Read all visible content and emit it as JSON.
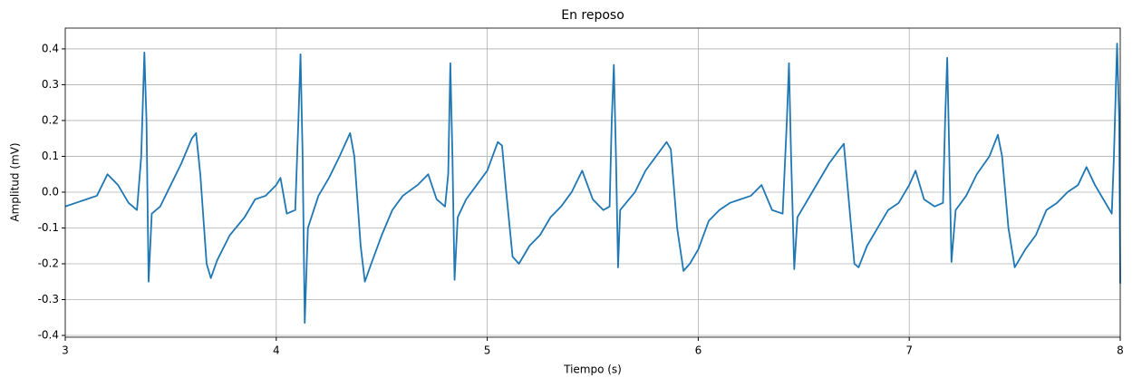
{
  "chart_data": {
    "type": "line",
    "title": "En reposo",
    "xlabel": "Tiempo (s)",
    "ylabel": "Amplitud (mV)",
    "x": [
      3.0,
      3.05,
      3.1,
      3.15,
      3.2,
      3.25,
      3.3,
      3.34,
      3.36,
      3.375,
      3.385,
      3.395,
      3.41,
      3.45,
      3.5,
      3.55,
      3.6,
      3.62,
      3.64,
      3.67,
      3.69,
      3.72,
      3.78,
      3.85,
      3.9,
      3.95,
      4.0,
      4.02,
      4.05,
      4.09,
      4.105,
      4.115,
      4.125,
      4.135,
      4.15,
      4.2,
      4.25,
      4.3,
      4.35,
      4.37,
      4.4,
      4.42,
      4.45,
      4.5,
      4.55,
      4.6,
      4.67,
      4.72,
      4.76,
      4.8,
      4.815,
      4.825,
      4.835,
      4.845,
      4.86,
      4.9,
      4.95,
      5.0,
      5.05,
      5.07,
      5.09,
      5.12,
      5.15,
      5.2,
      5.25,
      5.3,
      5.35,
      5.4,
      5.45,
      5.5,
      5.55,
      5.58,
      5.59,
      5.6,
      5.61,
      5.62,
      5.63,
      5.7,
      5.75,
      5.8,
      5.85,
      5.87,
      5.9,
      5.93,
      5.96,
      6.0,
      6.05,
      6.1,
      6.15,
      6.2,
      6.25,
      6.3,
      6.35,
      6.4,
      6.42,
      6.43,
      6.44,
      6.455,
      6.47,
      6.52,
      6.57,
      6.62,
      6.67,
      6.69,
      6.71,
      6.74,
      6.76,
      6.8,
      6.85,
      6.9,
      6.95,
      7.0,
      7.03,
      7.07,
      7.12,
      7.16,
      7.17,
      7.18,
      7.19,
      7.2,
      7.22,
      7.27,
      7.32,
      7.38,
      7.42,
      7.44,
      7.47,
      7.5,
      7.55,
      7.6,
      7.65,
      7.7,
      7.75,
      7.8,
      7.84,
      7.88,
      7.92,
      7.96,
      7.97,
      7.985,
      7.995,
      8.0
    ],
    "values": [
      -0.04,
      -0.03,
      -0.02,
      -0.01,
      0.05,
      0.02,
      -0.03,
      -0.05,
      0.1,
      0.39,
      0.2,
      -0.25,
      -0.06,
      -0.04,
      0.02,
      0.08,
      0.15,
      0.165,
      0.05,
      -0.2,
      -0.24,
      -0.19,
      -0.12,
      -0.07,
      -0.02,
      -0.01,
      0.02,
      0.04,
      -0.06,
      -0.05,
      0.2,
      0.385,
      0.1,
      -0.365,
      -0.1,
      -0.01,
      0.04,
      0.1,
      0.165,
      0.1,
      -0.15,
      -0.25,
      -0.2,
      -0.12,
      -0.05,
      -0.01,
      0.02,
      0.05,
      -0.02,
      -0.04,
      0.05,
      0.36,
      0.1,
      -0.245,
      -0.07,
      -0.02,
      0.02,
      0.06,
      0.14,
      0.13,
      0.0,
      -0.18,
      -0.2,
      -0.15,
      -0.12,
      -0.07,
      -0.04,
      0.0,
      0.06,
      -0.02,
      -0.05,
      -0.04,
      0.2,
      0.355,
      0.1,
      -0.21,
      -0.05,
      0.0,
      0.06,
      0.1,
      0.14,
      0.12,
      -0.1,
      -0.22,
      -0.2,
      -0.16,
      -0.08,
      -0.05,
      -0.03,
      -0.02,
      -0.01,
      0.02,
      -0.05,
      -0.06,
      0.2,
      0.36,
      0.1,
      -0.215,
      -0.07,
      -0.02,
      0.03,
      0.08,
      0.12,
      0.135,
      0.0,
      -0.2,
      -0.21,
      -0.15,
      -0.1,
      -0.05,
      -0.03,
      0.02,
      0.06,
      -0.02,
      -0.04,
      -0.03,
      0.2,
      0.375,
      0.1,
      -0.195,
      -0.05,
      -0.01,
      0.05,
      0.1,
      0.16,
      0.1,
      -0.1,
      -0.21,
      -0.16,
      -0.12,
      -0.05,
      -0.03,
      0.0,
      0.02,
      0.07,
      0.02,
      -0.02,
      -0.06,
      0.1,
      0.415,
      0.2,
      -0.255
    ],
    "color": "#1f77b4",
    "xlim": [
      3,
      8
    ],
    "ylim": [
      -0.405,
      0.458
    ],
    "xticks": [
      3,
      4,
      5,
      6,
      7,
      8
    ],
    "yticks": [
      -0.4,
      -0.3,
      -0.2,
      -0.1,
      {
        "value": 0,
        "label": "0.0"
      },
      0.1,
      0.2,
      0.3,
      0.4
    ],
    "grid": true
  }
}
